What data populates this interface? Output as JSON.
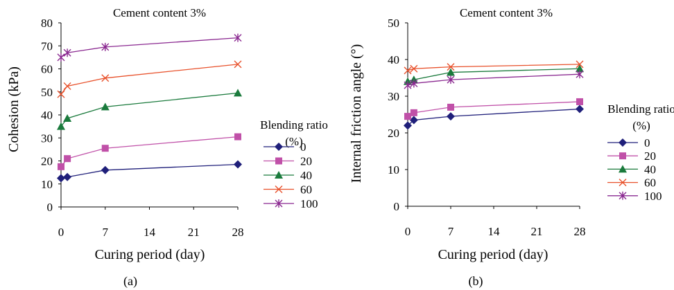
{
  "chart_data": [
    {
      "type": "line",
      "panel_label": "(a)",
      "title": "Cement content  3%",
      "xlabel": "Curing period (day)",
      "ylabel": "Cohesion (kPa)",
      "xlim": [
        0,
        28
      ],
      "ylim": [
        0,
        80
      ],
      "xticks": [
        "0",
        "7",
        "14",
        "21",
        "28"
      ],
      "yticks": [
        "0",
        "10",
        "20",
        "30",
        "40",
        "50",
        "60",
        "70",
        "80"
      ],
      "grid": false,
      "legend_title_line1": "Blending ratio",
      "legend_title_line2": "(%)",
      "legend_position": "right",
      "x": [
        0,
        1,
        7,
        28
      ],
      "series": [
        {
          "name": "0",
          "color": "#1f1f7a",
          "marker": "diamond",
          "values": [
            12.5,
            13.0,
            16.0,
            18.5
          ]
        },
        {
          "name": "20",
          "color": "#c050a8",
          "marker": "square",
          "values": [
            17.5,
            21.0,
            25.5,
            30.5
          ]
        },
        {
          "name": "40",
          "color": "#1a7a3c",
          "marker": "triangle",
          "values": [
            35.0,
            38.5,
            43.5,
            49.5
          ]
        },
        {
          "name": "60",
          "color": "#e8502a",
          "marker": "x",
          "values": [
            49.0,
            52.5,
            56.0,
            62.0
          ]
        },
        {
          "name": "100",
          "color": "#8a2890",
          "marker": "star",
          "values": [
            65.0,
            67.0,
            69.5,
            73.5
          ]
        }
      ]
    },
    {
      "type": "line",
      "panel_label": "(b)",
      "title": "Cement content  3%",
      "xlabel": "Curing period (day)",
      "ylabel": "Internal friction angle (°)",
      "xlim": [
        0,
        28
      ],
      "ylim": [
        0,
        50
      ],
      "xticks": [
        "0",
        "7",
        "14",
        "21",
        "28"
      ],
      "yticks": [
        "0",
        "10",
        "20",
        "30",
        "40",
        "50"
      ],
      "grid": false,
      "legend_title_line1": "Blending ratio",
      "legend_title_line2": "(%)",
      "legend_position": "right",
      "x": [
        0,
        1,
        7,
        28
      ],
      "series": [
        {
          "name": "0",
          "color": "#1f1f7a",
          "marker": "diamond",
          "values": [
            22.0,
            23.5,
            24.5,
            26.5
          ]
        },
        {
          "name": "20",
          "color": "#c050a8",
          "marker": "square",
          "values": [
            24.5,
            25.5,
            27.0,
            28.5
          ]
        },
        {
          "name": "40",
          "color": "#1a7a3c",
          "marker": "triangle",
          "values": [
            34.0,
            34.5,
            36.5,
            37.5
          ]
        },
        {
          "name": "60",
          "color": "#e8502a",
          "marker": "x",
          "values": [
            37.0,
            37.5,
            38.0,
            38.7
          ]
        },
        {
          "name": "100",
          "color": "#8a2890",
          "marker": "star",
          "values": [
            33.0,
            33.5,
            34.5,
            36.0
          ]
        }
      ]
    }
  ]
}
